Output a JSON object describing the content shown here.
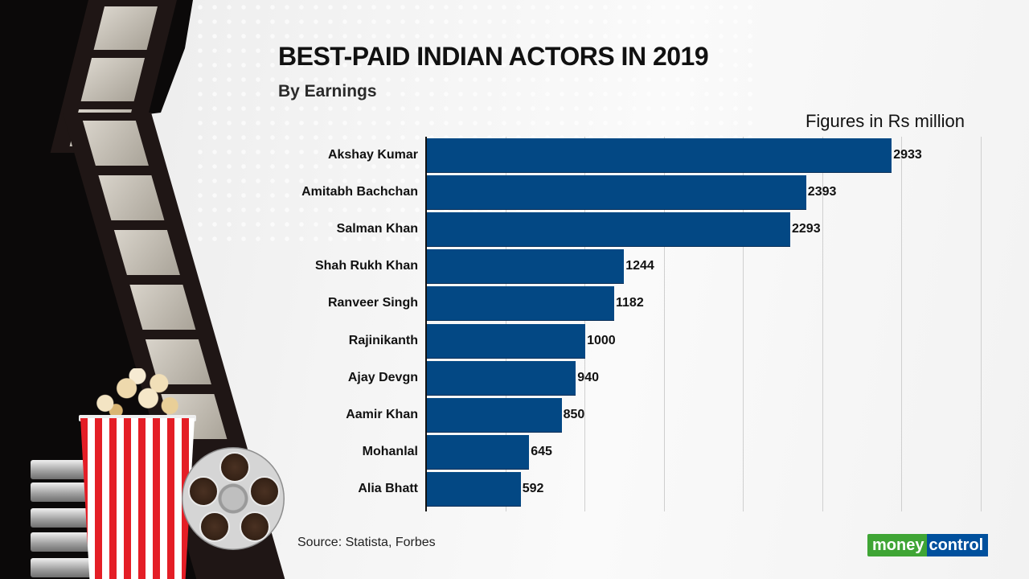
{
  "header": {
    "title": "BEST-PAID INDIAN ACTORS IN 2019",
    "subtitle": "By Earnings",
    "units": "Figures in Rs million"
  },
  "footer": {
    "source": "Source: Statista, Forbes",
    "logo_part1": "money",
    "logo_part2": "control"
  },
  "colors": {
    "bar": "#034884",
    "logo_green": "#3fa535",
    "logo_blue": "#00509d"
  },
  "chart_data": {
    "type": "bar",
    "orientation": "horizontal",
    "title": "BEST-PAID INDIAN ACTORS IN 2019",
    "subtitle": "By Earnings",
    "xlabel": "Figures in Rs million",
    "ylabel": "",
    "categories": [
      "Akshay Kumar",
      "Amitabh Bachchan",
      "Salman Khan",
      "Shah Rukh Khan",
      "Ranveer Singh",
      "Rajinikanth",
      "Ajay Devgn",
      "Aamir Khan",
      "Mohanlal",
      "Alia Bhatt"
    ],
    "values": [
      2933,
      2393,
      2293,
      1244,
      1182,
      1000,
      940,
      850,
      645,
      592
    ],
    "xlim": [
      0,
      3500
    ],
    "grid": true,
    "grid_step": 500,
    "data_labels": true,
    "legend": "none",
    "source": "Statista, Forbes"
  },
  "rows": [
    {
      "label": "Akshay Kumar",
      "value": "2933"
    },
    {
      "label": "Amitabh Bachchan",
      "value": "2393"
    },
    {
      "label": "Salman Khan",
      "value": "2293"
    },
    {
      "label": "Shah Rukh Khan",
      "value": "1244"
    },
    {
      "label": "Ranveer Singh",
      "value": "1182"
    },
    {
      "label": "Rajinikanth",
      "value": "1000"
    },
    {
      "label": "Ajay Devgn",
      "value": "940"
    },
    {
      "label": "Aamir Khan",
      "value": "850"
    },
    {
      "label": "Mohanlal",
      "value": "645"
    },
    {
      "label": "Alia Bhatt",
      "value": "592"
    }
  ]
}
